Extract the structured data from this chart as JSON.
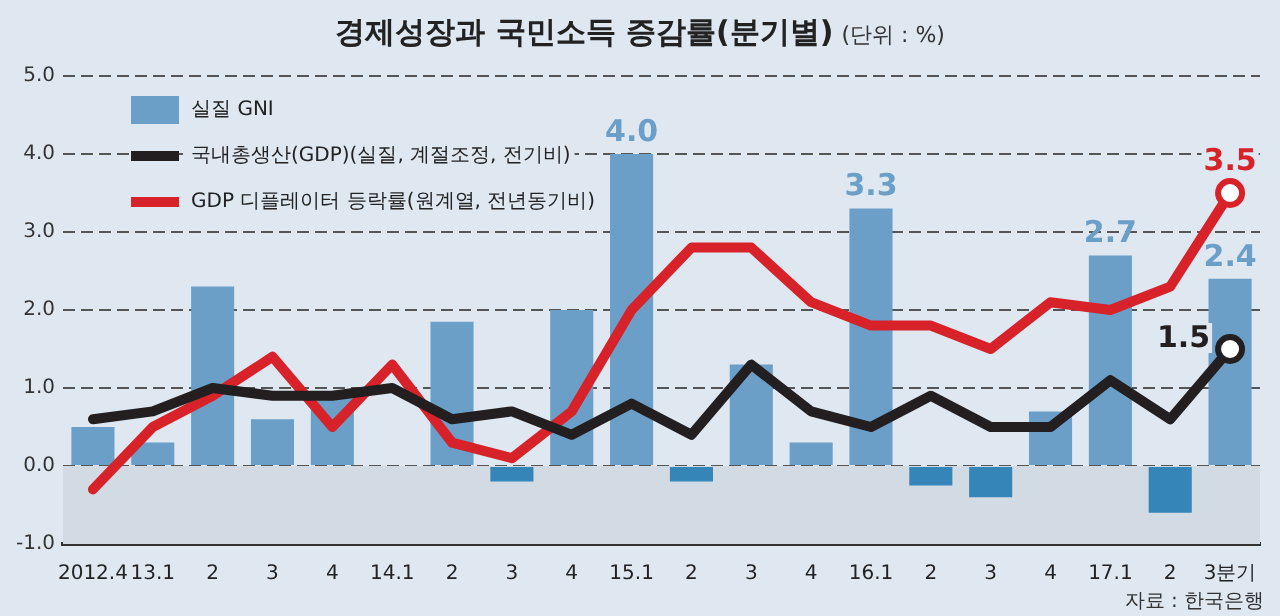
{
  "chart_data": {
    "type": "bar",
    "title": "경제성장과 국민소득 증감률(분기별)",
    "subtitle": "(단위 : %)",
    "categories": [
      "2012.4",
      "13.1",
      "2",
      "3",
      "4",
      "14.1",
      "2",
      "3",
      "4",
      "15.1",
      "2",
      "3",
      "4",
      "16.1",
      "2",
      "3",
      "4",
      "17.1",
      "2",
      "3분기"
    ],
    "series": [
      {
        "name": "실질 GNI",
        "color": "#6b9fc7",
        "colors": [
          "#6b9fc7",
          "#6b9fc7",
          "#6b9fc7",
          "#6b9fc7",
          "#6b9fc7",
          "#6b9fc7",
          "#6b9fc7",
          "#3585b9",
          "#6b9fc7",
          "#6b9fc7",
          "#3585b9",
          "#6b9fc7",
          "#6b9fc7",
          "#6b9fc7",
          "#3585b9",
          "#3585b9",
          "#6b9fc7",
          "#6b9fc7",
          "#3585b9",
          "#6b9fc7"
        ],
        "values": [
          0.5,
          0.3,
          2.3,
          0.6,
          0.9,
          0.0,
          1.85,
          -0.2,
          2.0,
          4.0,
          -0.2,
          1.3,
          0.3,
          3.3,
          -0.25,
          -0.4,
          0.7,
          2.7,
          -0.6,
          2.4
        ],
        "value_labels": [
          null,
          null,
          null,
          null,
          null,
          null,
          null,
          null,
          null,
          "4.0",
          null,
          null,
          null,
          "3.3",
          null,
          null,
          null,
          "2.7",
          null,
          "2.4"
        ]
      },
      {
        "name": "국내총생산(GDP)(실질, 계절조정, 전기비)",
        "type": "line",
        "color": "#231f20",
        "values": [
          0.6,
          0.7,
          1.0,
          0.9,
          0.9,
          1.0,
          0.6,
          0.7,
          0.4,
          0.8,
          0.4,
          1.3,
          0.7,
          0.5,
          0.9,
          0.5,
          0.5,
          1.1,
          0.6,
          1.5
        ],
        "value_labels": [
          null,
          null,
          null,
          null,
          null,
          null,
          null,
          null,
          null,
          null,
          null,
          null,
          null,
          null,
          null,
          null,
          null,
          null,
          null,
          "1.5"
        ]
      },
      {
        "name": "GDP 디플레이터 등락률(원계열, 전년동기비)",
        "type": "line",
        "color": "#d7222a",
        "values": [
          -0.3,
          0.5,
          0.9,
          1.4,
          0.5,
          1.3,
          0.3,
          0.1,
          0.7,
          2.0,
          2.8,
          2.8,
          2.1,
          1.8,
          1.8,
          1.5,
          2.1,
          2.0,
          2.3,
          3.5
        ],
        "value_labels": [
          null,
          null,
          null,
          null,
          null,
          null,
          null,
          null,
          null,
          null,
          null,
          null,
          null,
          null,
          null,
          null,
          null,
          null,
          null,
          "3.5"
        ]
      }
    ],
    "ylim": [
      -1,
      5
    ],
    "yticks": [
      {
        "value": -1,
        "label": "-1.0"
      },
      {
        "value": 0,
        "label": "0.0"
      },
      {
        "value": 1,
        "label": "1.0"
      },
      {
        "value": 2,
        "label": "2.0"
      },
      {
        "value": 3,
        "label": "3.0"
      },
      {
        "value": 4,
        "label": "4.0"
      },
      {
        "value": 5,
        "label": "5.0"
      }
    ],
    "bands": [
      {
        "axis": "y",
        "from": -1,
        "to": 0,
        "color": "#d2dae3"
      }
    ],
    "grid": "y",
    "legend": "top left",
    "line_style": "solid",
    "annotations": [
      "자료 : 한국은행"
    ]
  }
}
